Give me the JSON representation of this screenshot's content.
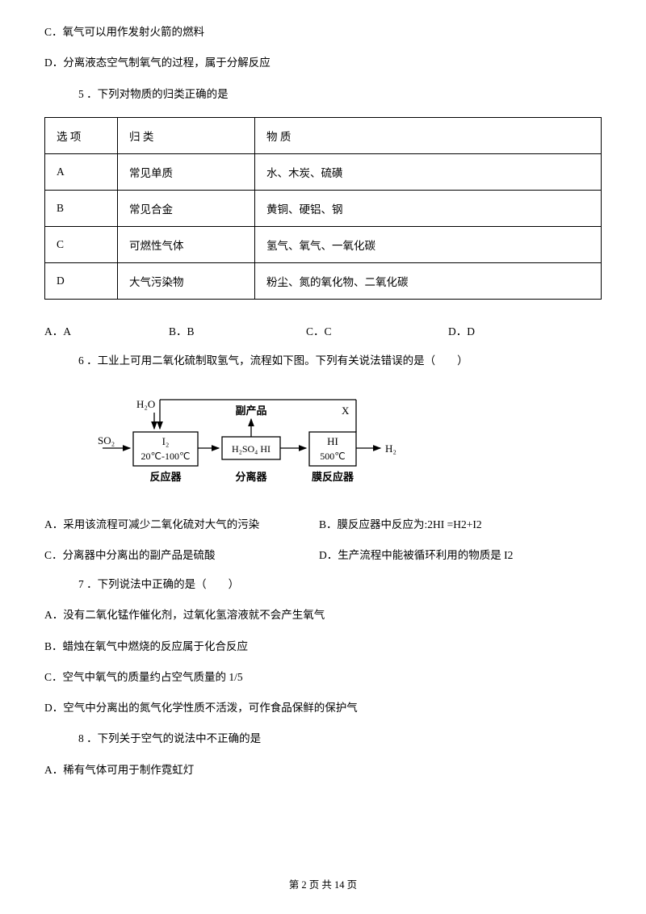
{
  "q4": {
    "optC": "C．氧气可以用作发射火箭的燃料",
    "optD": "D．分离液态空气制氧气的过程，属于分解反应"
  },
  "q5": {
    "stem": "5 ．下列对物质的归类正确的是",
    "table": {
      "headers": [
        "选 项",
        "归 类",
        "物 质"
      ],
      "rows": [
        [
          "A",
          "常见单质",
          "水、木炭、硫磺"
        ],
        [
          "B",
          "常见合金",
          "黄铜、硬铝、钢"
        ],
        [
          "C",
          "可燃性气体",
          "氢气、氧气、一氧化碳"
        ],
        [
          "D",
          "大气污染物",
          "粉尘、氮的氧化物、二氧化碳"
        ]
      ]
    },
    "answers": {
      "A": "A．A",
      "B": "B．B",
      "C": "C．C",
      "D": "D．D"
    },
    "answers_gap": {
      "w1": 154,
      "w2": 170,
      "w3": 176
    }
  },
  "q6": {
    "stem": "6 ．工业上可用二氧化硫制取氢气，流程如下图。下列有关说法错误的是（　　）",
    "diagram": {
      "labels": {
        "h2o": "H₂O",
        "so2": "SO₂",
        "byproduct": "副产品",
        "x": "X",
        "i2": "I₂",
        "temp1": "20℃-100℃",
        "h2so4_hi": "H₂SO₄ HI",
        "hi": "HI",
        "temp2": "500℃",
        "h2": "H₂",
        "reactor": "反应器",
        "separator": "分离器",
        "membrane": "膜反应器"
      },
      "colors": {
        "stroke": "#000000",
        "text": "#000000",
        "bg": "#ffffff"
      }
    },
    "optA": "A．采用该流程可减少二氧化硫对大气的污染",
    "optB": "B．膜反应器中反应为:2HI =H2+I2",
    "optC": "C．分离器中分离出的副产品是硫酸",
    "optD": "D．生产流程中能被循环利用的物质是 I2"
  },
  "q7": {
    "stem": "7 ．下列说法中正确的是（　　）",
    "optA": "A．没有二氧化锰作催化剂，过氧化氢溶液就不会产生氧气",
    "optB": "B．蜡烛在氧气中燃烧的反应属于化合反应",
    "optC": "C．空气中氧气的质量约占空气质量的 1/5",
    "optD": "D．空气中分离出的氮气化学性质不活泼，可作食品保鲜的保护气"
  },
  "q8": {
    "stem": "8 ．下列关于空气的说法中不正确的是",
    "optA": "A．稀有气体可用于制作霓虹灯"
  },
  "footer": "第 2 页 共 14 页"
}
